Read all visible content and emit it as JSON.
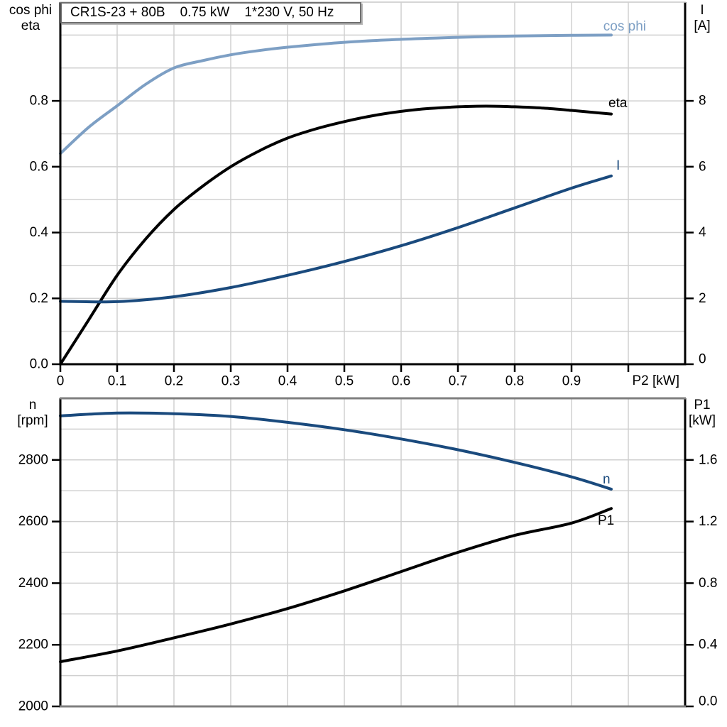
{
  "colors": {
    "black": "#000000",
    "dark_blue": "#1a4a7d",
    "light_blue": "#7d9fc4",
    "grid": "#d0d0d0",
    "frame_gray": "#7f7f7f",
    "background": "#ffffff"
  },
  "title_box": {
    "parts": [
      "CR1S-23 + 80B",
      "0.75 kW",
      "1*230 V, 50 Hz"
    ]
  },
  "axis_labels": {
    "top_left_line1": "cos phi",
    "top_left_line2": "eta",
    "top_right_line1": "I",
    "top_right_line2": "[A]",
    "bottom_left_line1": "n",
    "bottom_left_line2": "[rpm]",
    "bottom_right_line1": "P1",
    "bottom_right_line2": "[kW]",
    "x_axis": "P2 [kW]"
  },
  "curve_labels": {
    "cos_phi": "cos phi",
    "eta": "eta",
    "current": "I",
    "speed": "n",
    "power_in": "P1"
  },
  "chart_data": [
    {
      "type": "line",
      "title": "CR1S-23 + 80B  0.75 kW  1*230 V, 50 Hz",
      "xlabel": "P2 [kW]",
      "ylabel_left": "cos phi / eta",
      "ylabel_right": "I [A]",
      "xlim": [
        0,
        1.1
      ],
      "ylim_left": [
        0,
        1.1
      ],
      "ylim_right": [
        0,
        11
      ],
      "grid": true,
      "x_grid_step": 0.1,
      "y_grid_step": 0.1,
      "ticks": {
        "x": {
          "values": [
            0,
            0.1,
            0.2,
            0.3,
            0.4,
            0.5,
            0.6,
            0.7,
            0.8,
            0.9,
            1.0
          ],
          "labels": [
            "0",
            "0.1",
            "0.2",
            "0.3",
            "0.4",
            "0.5",
            "0.6",
            "0.7",
            "0.8",
            "0.9",
            ""
          ]
        },
        "left": {
          "values": [
            0,
            0.2,
            0.4,
            0.6,
            0.8
          ],
          "labels": [
            "0.0",
            "0.2",
            "0.4",
            "0.6",
            "0.8"
          ]
        },
        "right": {
          "values": [
            0,
            2,
            4,
            6,
            8
          ],
          "labels": [
            "0",
            "2",
            "4",
            "6",
            "8"
          ]
        }
      },
      "series": [
        {
          "name": "cos phi",
          "axis": "left",
          "color": "#7d9fc4",
          "x": [
            0,
            0.05,
            0.1,
            0.15,
            0.2,
            0.25,
            0.3,
            0.35,
            0.4,
            0.5,
            0.6,
            0.7,
            0.8,
            0.9,
            0.97
          ],
          "y": [
            0.64,
            0.72,
            0.785,
            0.85,
            0.9,
            0.922,
            0.94,
            0.953,
            0.963,
            0.978,
            0.987,
            0.993,
            0.997,
            0.999,
            1.0
          ]
        },
        {
          "name": "eta",
          "axis": "left",
          "color": "#000000",
          "x": [
            0,
            0.05,
            0.1,
            0.15,
            0.2,
            0.25,
            0.3,
            0.35,
            0.4,
            0.45,
            0.5,
            0.55,
            0.6,
            0.65,
            0.7,
            0.75,
            0.8,
            0.85,
            0.9,
            0.97
          ],
          "y": [
            0,
            0.135,
            0.27,
            0.38,
            0.47,
            0.54,
            0.6,
            0.648,
            0.687,
            0.715,
            0.737,
            0.755,
            0.768,
            0.777,
            0.782,
            0.784,
            0.782,
            0.778,
            0.771,
            0.76
          ]
        },
        {
          "name": "I",
          "axis": "right",
          "color": "#1a4a7d",
          "x": [
            0,
            0.1,
            0.2,
            0.3,
            0.4,
            0.5,
            0.6,
            0.7,
            0.8,
            0.9,
            0.97
          ],
          "y": [
            1.91,
            1.9,
            2.05,
            2.33,
            2.7,
            3.12,
            3.6,
            4.15,
            4.75,
            5.35,
            5.72
          ]
        }
      ]
    },
    {
      "type": "line",
      "title": "",
      "xlabel": "",
      "ylabel_left": "n [rpm]",
      "ylabel_right": "P1 [kW]",
      "xlim": [
        0,
        1.1
      ],
      "ylim_left": [
        2000,
        3000
      ],
      "ylim_right": [
        0,
        2
      ],
      "grid": true,
      "x_grid_step": 0.1,
      "y_grid_step": 100,
      "ticks": {
        "left": {
          "values": [
            2000,
            2200,
            2400,
            2600,
            2800
          ],
          "labels": [
            "2000",
            "2200",
            "2400",
            "2600",
            "2800"
          ]
        },
        "right": {
          "values": [
            0,
            0.4,
            0.8,
            1.2,
            1.6
          ],
          "labels": [
            "0.0",
            "0.4",
            "0.8",
            "1.2",
            "1.6"
          ]
        }
      },
      "series": [
        {
          "name": "n",
          "axis": "left",
          "color": "#1a4a7d",
          "x": [
            0,
            0.1,
            0.2,
            0.3,
            0.4,
            0.5,
            0.6,
            0.7,
            0.8,
            0.9,
            0.97
          ],
          "y": [
            2943,
            2952,
            2950,
            2941,
            2922,
            2898,
            2868,
            2833,
            2792,
            2745,
            2705
          ]
        },
        {
          "name": "P1",
          "axis": "right",
          "color": "#000000",
          "x": [
            0,
            0.1,
            0.2,
            0.3,
            0.4,
            0.5,
            0.6,
            0.7,
            0.8,
            0.9,
            0.97
          ],
          "y": [
            0.29,
            0.36,
            0.445,
            0.535,
            0.635,
            0.75,
            0.875,
            1.0,
            1.11,
            1.19,
            1.285
          ]
        }
      ]
    }
  ]
}
